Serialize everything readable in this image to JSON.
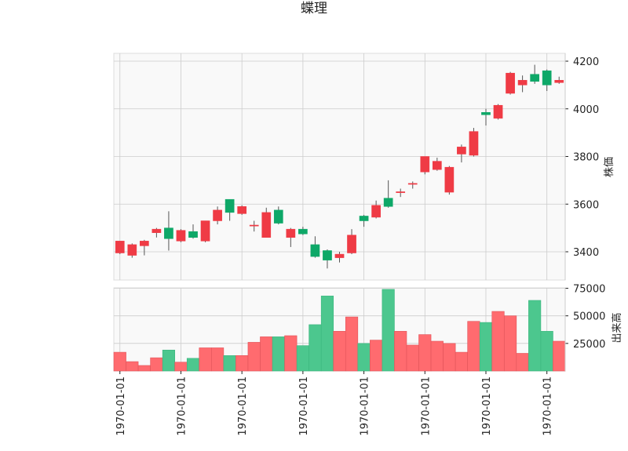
{
  "chart_data": {
    "type": "candlestick",
    "title": "蝶理",
    "grid": true,
    "colors": {
      "up": "#ef3b45",
      "down": "#0ea868",
      "vol_up": "#ff6b6f",
      "vol_down": "#4cc78e",
      "background": "#f9f9f9",
      "grid": "#cccccc"
    },
    "price_axis": {
      "label": "株価",
      "ticks": [
        3400,
        3600,
        3800,
        4000,
        4200
      ],
      "tick_labels": [
        "3400",
        "3600",
        "3800",
        "4000",
        "4200"
      ],
      "range": [
        3285,
        4225
      ]
    },
    "volume_axis": {
      "label": "出来高",
      "ticks": [
        25000,
        50000,
        75000
      ],
      "tick_labels": [
        "25000",
        "50000",
        "75000"
      ],
      "range": [
        0,
        82500
      ]
    },
    "x_tick_labels": [
      "1970-01-01",
      "1970-01-01",
      "1970-01-01",
      "1970-01-01",
      "1970-01-01",
      "1970-01-01",
      "1970-01-01",
      "1970-01-01"
    ],
    "x_tick_indices": [
      0,
      5,
      10,
      15,
      20,
      25,
      30,
      35
    ],
    "candles": [
      {
        "open": 3395,
        "close": 3445,
        "high": 3445,
        "low": 3390,
        "volume": 17000
      },
      {
        "open": 3385,
        "close": 3430,
        "high": 3435,
        "low": 3375,
        "volume": 8500
      },
      {
        "open": 3425,
        "close": 3445,
        "high": 3450,
        "low": 3385,
        "volume": 5000
      },
      {
        "open": 3480,
        "close": 3495,
        "high": 3500,
        "low": 3460,
        "volume": 12000
      },
      {
        "open": 3500,
        "close": 3455,
        "high": 3570,
        "low": 3405,
        "volume": 19000
      },
      {
        "open": 3445,
        "close": 3490,
        "high": 3495,
        "low": 3440,
        "volume": 8000
      },
      {
        "open": 3485,
        "close": 3460,
        "high": 3515,
        "low": 3455,
        "volume": 11500
      },
      {
        "open": 3445,
        "close": 3530,
        "high": 3530,
        "low": 3440,
        "volume": 21000
      },
      {
        "open": 3530,
        "close": 3575,
        "high": 3590,
        "low": 3515,
        "volume": 21000
      },
      {
        "open": 3620,
        "close": 3565,
        "high": 3620,
        "low": 3530,
        "volume": 14000
      },
      {
        "open": 3560,
        "close": 3590,
        "high": 3595,
        "low": 3555,
        "volume": 14000
      },
      {
        "open": 3510,
        "close": 3510,
        "high": 3530,
        "low": 3485,
        "volume": 26000
      },
      {
        "open": 3460,
        "close": 3565,
        "high": 3585,
        "low": 3460,
        "volume": 31000
      },
      {
        "open": 3575,
        "close": 3520,
        "high": 3590,
        "low": 3515,
        "volume": 31000
      },
      {
        "open": 3460,
        "close": 3495,
        "high": 3500,
        "low": 3420,
        "volume": 32000
      },
      {
        "open": 3495,
        "close": 3475,
        "high": 3505,
        "low": 3470,
        "volume": 23000
      },
      {
        "open": 3430,
        "close": 3380,
        "high": 3465,
        "low": 3375,
        "volume": 42000
      },
      {
        "open": 3405,
        "close": 3365,
        "high": 3410,
        "low": 3330,
        "volume": 68000
      },
      {
        "open": 3375,
        "close": 3390,
        "high": 3400,
        "low": 3355,
        "volume": 36000
      },
      {
        "open": 3395,
        "close": 3470,
        "high": 3495,
        "low": 3390,
        "volume": 49000
      },
      {
        "open": 3550,
        "close": 3530,
        "high": 3555,
        "low": 3505,
        "volume": 25000
      },
      {
        "open": 3545,
        "close": 3595,
        "high": 3615,
        "low": 3540,
        "volume": 28000
      },
      {
        "open": 3625,
        "close": 3590,
        "high": 3700,
        "low": 3585,
        "volume": 74000
      },
      {
        "open": 3650,
        "close": 3650,
        "high": 3665,
        "low": 3630,
        "volume": 36000
      },
      {
        "open": 3685,
        "close": 3685,
        "high": 3695,
        "low": 3665,
        "volume": 23500
      },
      {
        "open": 3735,
        "close": 3800,
        "high": 3800,
        "low": 3725,
        "volume": 33000
      },
      {
        "open": 3745,
        "close": 3780,
        "high": 3795,
        "low": 3740,
        "volume": 27000
      },
      {
        "open": 3650,
        "close": 3755,
        "high": 3760,
        "low": 3640,
        "volume": 25000
      },
      {
        "open": 3810,
        "close": 3840,
        "high": 3850,
        "low": 3775,
        "volume": 17000
      },
      {
        "open": 3805,
        "close": 3905,
        "high": 3920,
        "low": 3800,
        "volume": 45000
      },
      {
        "open": 3985,
        "close": 3975,
        "high": 4000,
        "low": 3930,
        "volume": 44000
      },
      {
        "open": 3960,
        "close": 4015,
        "high": 4020,
        "low": 3955,
        "volume": 54000
      },
      {
        "open": 4065,
        "close": 4150,
        "high": 4155,
        "low": 4060,
        "volume": 50000
      },
      {
        "open": 4100,
        "close": 4120,
        "high": 4140,
        "low": 4070,
        "volume": 16000
      },
      {
        "open": 4145,
        "close": 4115,
        "high": 4185,
        "low": 4105,
        "volume": 64000
      },
      {
        "open": 4160,
        "close": 4100,
        "high": 4165,
        "low": 4075,
        "volume": 36000
      },
      {
        "open": 4110,
        "close": 4120,
        "high": 4135,
        "low": 4105,
        "volume": 27000
      }
    ]
  }
}
